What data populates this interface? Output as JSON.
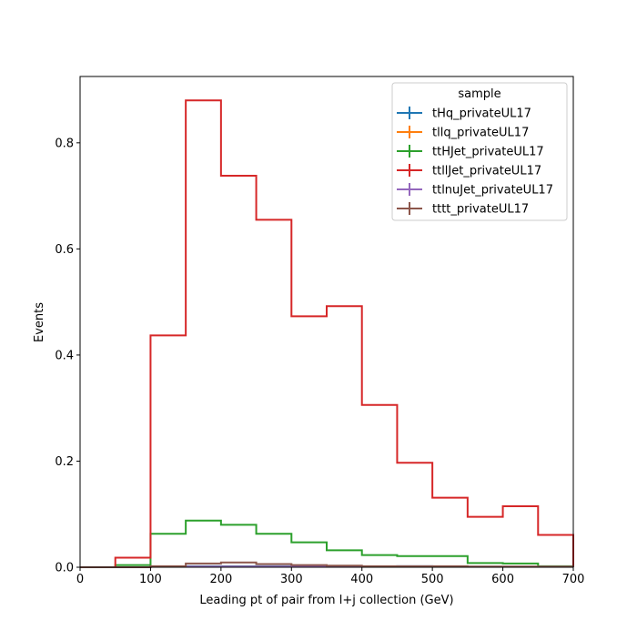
{
  "chart_data": {
    "type": "step-histogram",
    "xlabel": "Leading pt of pair from l+j collection (GeV)",
    "ylabel": "Events",
    "xlim": [
      0,
      700
    ],
    "ylim": [
      0,
      0.925
    ],
    "xticks": [
      0,
      100,
      200,
      300,
      400,
      500,
      600,
      700
    ],
    "yticks": [
      0.0,
      0.2,
      0.4,
      0.6,
      0.8
    ],
    "xtick_labels": [
      "0",
      "100",
      "200",
      "300",
      "400",
      "500",
      "600",
      "700"
    ],
    "ytick_labels": [
      "0.0",
      "0.2",
      "0.4",
      "0.6",
      "0.8"
    ],
    "bin_edges": [
      0,
      50,
      100,
      150,
      200,
      250,
      300,
      350,
      400,
      450,
      500,
      550,
      600,
      650,
      700
    ],
    "grid": false,
    "legend": {
      "title": "sample",
      "placement": "top-right"
    },
    "series": [
      {
        "name": "tHq_privateUL17",
        "color": "#1f77b4",
        "values": [
          0,
          0,
          0.001,
          0.002,
          0.002,
          0.002,
          0.001,
          0.001,
          0.001,
          0.002,
          0.001,
          0.001,
          0.001,
          0.001
        ]
      },
      {
        "name": "tllq_privateUL17",
        "color": "#ff7f0e",
        "values": [
          0,
          0,
          0.001,
          0.001,
          0.001,
          0.001,
          0.001,
          0.001,
          0.001,
          0.001,
          0.001,
          0.001,
          0.001,
          0.001
        ]
      },
      {
        "name": "ttHJet_privateUL17",
        "color": "#2ca02c",
        "values": [
          0,
          0.004,
          0.063,
          0.088,
          0.08,
          0.063,
          0.047,
          0.032,
          0.023,
          0.021,
          0.021,
          0.008,
          0.007,
          0.002
        ]
      },
      {
        "name": "ttllJet_privateUL17",
        "color": "#d62728",
        "values": [
          0,
          0.018,
          0.437,
          0.88,
          0.738,
          0.655,
          0.473,
          0.492,
          0.306,
          0.197,
          0.131,
          0.095,
          0.115,
          0.061
        ]
      },
      {
        "name": "ttlnuJet_privateUL17",
        "color": "#9467bd",
        "values": [
          0,
          0,
          0.001,
          0.001,
          0.001,
          0.001,
          0.001,
          0.001,
          0.001,
          0.001,
          0.001,
          0.001,
          0.001,
          0.001
        ]
      },
      {
        "name": "tttt_privateUL17",
        "color": "#8c564b",
        "values": [
          0,
          0,
          0.002,
          0.007,
          0.009,
          0.006,
          0.004,
          0.003,
          0.002,
          0.002,
          0.002,
          0.001,
          0.001,
          0.001
        ]
      }
    ]
  }
}
